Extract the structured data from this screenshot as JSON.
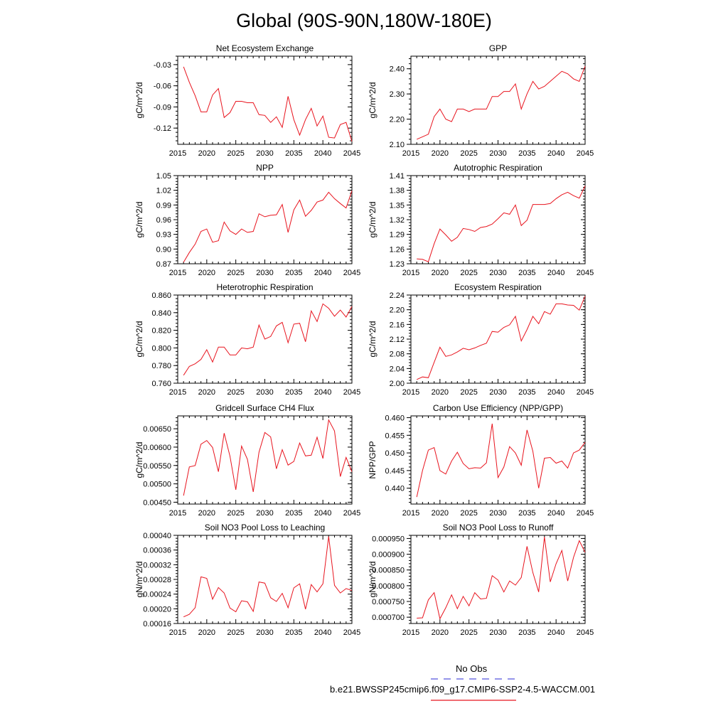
{
  "title": "Global (90S-90N,180W-180E)",
  "legend": {
    "obs_label": "No Obs",
    "obs_color": "#5555dd",
    "case_label": "b.e21.BWSSP245cmip6.f09_g17.CMIP6-SSP2-4.5-WACCM.001",
    "case_color": "#e8141e"
  },
  "line_color": "#e8141e",
  "chart_data": [
    {
      "type": "line",
      "title": "Net Ecosystem Exchange",
      "ylabel": "gC/m^2/d",
      "xlim": [
        2015,
        2045
      ],
      "xticks": [
        2015,
        2020,
        2025,
        2030,
        2035,
        2040,
        2045
      ],
      "ylim": [
        -0.143,
        -0.018
      ],
      "yticks": [
        -0.12,
        -0.09,
        -0.06,
        -0.03
      ],
      "ytick_labels": [
        "-0.12",
        "-0.09",
        "-0.06",
        "-0.03"
      ],
      "x": [
        2016,
        2017,
        2018,
        2019,
        2020,
        2021,
        2022,
        2023,
        2024,
        2025,
        2026,
        2027,
        2028,
        2029,
        2030,
        2031,
        2032,
        2033,
        2034,
        2035,
        2036,
        2037,
        2038,
        2039,
        2040,
        2041,
        2042,
        2043,
        2044,
        2045
      ],
      "values": [
        -0.033,
        -0.055,
        -0.074,
        -0.097,
        -0.097,
        -0.073,
        -0.064,
        -0.105,
        -0.098,
        -0.082,
        -0.082,
        -0.084,
        -0.084,
        -0.101,
        -0.102,
        -0.112,
        -0.104,
        -0.119,
        -0.075,
        -0.108,
        -0.13,
        -0.108,
        -0.092,
        -0.117,
        -0.103,
        -0.133,
        -0.134,
        -0.115,
        -0.112,
        -0.139
      ]
    },
    {
      "type": "line",
      "title": "GPP",
      "ylabel": "gC/m^2/d",
      "xlim": [
        2015,
        2045
      ],
      "xticks": [
        2015,
        2020,
        2025,
        2030,
        2035,
        2040,
        2045
      ],
      "ylim": [
        2.1,
        2.45
      ],
      "yticks": [
        2.1,
        2.2,
        2.3,
        2.4
      ],
      "ytick_labels": [
        "2.10",
        "2.20",
        "2.30",
        "2.40"
      ],
      "x": [
        2016,
        2017,
        2018,
        2019,
        2020,
        2021,
        2022,
        2023,
        2024,
        2025,
        2026,
        2027,
        2028,
        2029,
        2030,
        2031,
        2032,
        2033,
        2034,
        2035,
        2036,
        2037,
        2038,
        2039,
        2040,
        2041,
        2042,
        2043,
        2044,
        2045
      ],
      "values": [
        2.12,
        2.13,
        2.14,
        2.21,
        2.24,
        2.2,
        2.19,
        2.24,
        2.24,
        2.23,
        2.24,
        2.24,
        2.24,
        2.29,
        2.29,
        2.31,
        2.31,
        2.34,
        2.24,
        2.3,
        2.35,
        2.32,
        2.33,
        2.35,
        2.37,
        2.39,
        2.38,
        2.36,
        2.35,
        2.41
      ]
    },
    {
      "type": "line",
      "title": "NPP",
      "ylabel": "gC/m^2/d",
      "xlim": [
        2015,
        2045
      ],
      "xticks": [
        2015,
        2020,
        2025,
        2030,
        2035,
        2040,
        2045
      ],
      "ylim": [
        0.87,
        1.05
      ],
      "yticks": [
        0.87,
        0.9,
        0.93,
        0.96,
        0.99,
        1.02,
        1.05
      ],
      "ytick_labels": [
        "0.87",
        "0.90",
        "0.93",
        "0.96",
        "0.99",
        "1.02",
        "1.05"
      ],
      "x": [
        2016,
        2017,
        2018,
        2019,
        2020,
        2021,
        2022,
        2023,
        2024,
        2025,
        2026,
        2027,
        2028,
        2029,
        2030,
        2031,
        2032,
        2033,
        2034,
        2035,
        2036,
        2037,
        2038,
        2039,
        2040,
        2041,
        2042,
        2043,
        2044,
        2045
      ],
      "values": [
        0.873,
        0.893,
        0.91,
        0.936,
        0.941,
        0.914,
        0.917,
        0.955,
        0.937,
        0.93,
        0.941,
        0.934,
        0.936,
        0.972,
        0.966,
        0.969,
        0.97,
        0.991,
        0.934,
        0.98,
        1.0,
        0.967,
        0.979,
        0.996,
        1.0,
        1.016,
        1.003,
        0.993,
        0.984,
        1.019
      ]
    },
    {
      "type": "line",
      "title": "Autotrophic Respiration",
      "ylabel": "gC/m^2/d",
      "xlim": [
        2015,
        2045
      ],
      "xticks": [
        2015,
        2020,
        2025,
        2030,
        2035,
        2040,
        2045
      ],
      "ylim": [
        1.23,
        1.41
      ],
      "yticks": [
        1.23,
        1.26,
        1.29,
        1.32,
        1.35,
        1.38,
        1.41
      ],
      "ytick_labels": [
        "1.23",
        "1.26",
        "1.29",
        "1.32",
        "1.35",
        "1.38",
        "1.41"
      ],
      "x": [
        2016,
        2017,
        2018,
        2019,
        2020,
        2021,
        2022,
        2023,
        2024,
        2025,
        2026,
        2027,
        2028,
        2029,
        2030,
        2031,
        2032,
        2033,
        2034,
        2035,
        2036,
        2037,
        2038,
        2039,
        2040,
        2041,
        2042,
        2043,
        2044,
        2045
      ],
      "values": [
        1.24,
        1.239,
        1.234,
        1.271,
        1.301,
        1.289,
        1.276,
        1.284,
        1.302,
        1.3,
        1.296,
        1.304,
        1.306,
        1.311,
        1.322,
        1.334,
        1.331,
        1.35,
        1.308,
        1.319,
        1.351,
        1.351,
        1.351,
        1.353,
        1.363,
        1.371,
        1.376,
        1.369,
        1.364,
        1.389
      ]
    },
    {
      "type": "line",
      "title": "Heterotrophic Respiration",
      "ylabel": "gC/m^2/d",
      "xlim": [
        2015,
        2045
      ],
      "xticks": [
        2015,
        2020,
        2025,
        2030,
        2035,
        2040,
        2045
      ],
      "ylim": [
        0.76,
        0.86
      ],
      "yticks": [
        0.76,
        0.78,
        0.8,
        0.82,
        0.84,
        0.86
      ],
      "ytick_labels": [
        "0.760",
        "0.780",
        "0.800",
        "0.820",
        "0.840",
        "0.860"
      ],
      "x": [
        2016,
        2017,
        2018,
        2019,
        2020,
        2021,
        2022,
        2023,
        2024,
        2025,
        2026,
        2027,
        2028,
        2029,
        2030,
        2031,
        2032,
        2033,
        2034,
        2035,
        2036,
        2037,
        2038,
        2039,
        2040,
        2041,
        2042,
        2043,
        2044,
        2045
      ],
      "values": [
        0.769,
        0.779,
        0.782,
        0.787,
        0.798,
        0.784,
        0.801,
        0.801,
        0.792,
        0.792,
        0.8,
        0.799,
        0.801,
        0.826,
        0.81,
        0.813,
        0.825,
        0.829,
        0.806,
        0.827,
        0.828,
        0.807,
        0.842,
        0.83,
        0.85,
        0.845,
        0.836,
        0.843,
        0.835,
        0.847
      ]
    },
    {
      "type": "line",
      "title": "Ecosystem Respiration",
      "ylabel": "gC/m^2/d",
      "xlim": [
        2015,
        2045
      ],
      "xticks": [
        2015,
        2020,
        2025,
        2030,
        2035,
        2040,
        2045
      ],
      "ylim": [
        2.0,
        2.24
      ],
      "yticks": [
        2.0,
        2.04,
        2.08,
        2.12,
        2.16,
        2.2,
        2.24
      ],
      "ytick_labels": [
        "2.00",
        "2.04",
        "2.08",
        "2.12",
        "2.16",
        "2.20",
        "2.24"
      ],
      "x": [
        2016,
        2017,
        2018,
        2019,
        2020,
        2021,
        2022,
        2023,
        2024,
        2025,
        2026,
        2027,
        2028,
        2029,
        2030,
        2031,
        2032,
        2033,
        2034,
        2035,
        2036,
        2037,
        2038,
        2039,
        2040,
        2041,
        2042,
        2043,
        2044,
        2045
      ],
      "values": [
        2.01,
        2.017,
        2.015,
        2.057,
        2.098,
        2.073,
        2.077,
        2.085,
        2.095,
        2.091,
        2.096,
        2.103,
        2.109,
        2.141,
        2.139,
        2.152,
        2.159,
        2.182,
        2.115,
        2.146,
        2.182,
        2.162,
        2.195,
        2.188,
        2.216,
        2.216,
        2.213,
        2.212,
        2.199,
        2.237
      ]
    },
    {
      "type": "line",
      "title": "Gridcell Surface CH4 Flux",
      "ylabel": "gC/m^2/d",
      "xlim": [
        2015,
        2045
      ],
      "xticks": [
        2015,
        2020,
        2025,
        2030,
        2035,
        2040,
        2045
      ],
      "ylim": [
        0.00445,
        0.00685
      ],
      "yticks": [
        0.0045,
        0.005,
        0.0055,
        0.006,
        0.0065
      ],
      "ytick_labels": [
        "0.00450",
        "0.00500",
        "0.00550",
        "0.00600",
        "0.00650"
      ],
      "x": [
        2016,
        2017,
        2018,
        2019,
        2020,
        2021,
        2022,
        2023,
        2024,
        2025,
        2026,
        2027,
        2028,
        2029,
        2030,
        2031,
        2032,
        2033,
        2034,
        2035,
        2036,
        2037,
        2038,
        2039,
        2040,
        2041,
        2042,
        2043,
        2044,
        2045
      ],
      "values": [
        0.00468,
        0.00546,
        0.0055,
        0.00608,
        0.00618,
        0.00599,
        0.00533,
        0.00638,
        0.00575,
        0.00484,
        0.00603,
        0.00567,
        0.00478,
        0.00586,
        0.0064,
        0.00628,
        0.00541,
        0.00593,
        0.00551,
        0.00561,
        0.00611,
        0.00576,
        0.00578,
        0.00627,
        0.00569,
        0.00674,
        0.00644,
        0.0052,
        0.00572,
        0.00533
      ]
    },
    {
      "type": "line",
      "title": "Carbon Use Efficiency (NPP/GPP)",
      "ylabel": "NPP/GPP",
      "xlim": [
        2015,
        2045
      ],
      "xticks": [
        2015,
        2020,
        2025,
        2030,
        2035,
        2040,
        2045
      ],
      "ylim": [
        0.4355,
        0.4605
      ],
      "yticks": [
        0.44,
        0.445,
        0.45,
        0.455,
        0.46
      ],
      "ytick_labels": [
        "0.440",
        "0.445",
        "0.450",
        "0.455",
        "0.460"
      ],
      "x": [
        2016,
        2017,
        2018,
        2019,
        2020,
        2021,
        2022,
        2023,
        2024,
        2025,
        2026,
        2027,
        2028,
        2029,
        2030,
        2031,
        2032,
        2033,
        2034,
        2035,
        2036,
        2037,
        2038,
        2039,
        2040,
        2041,
        2042,
        2043,
        2044,
        2045
      ],
      "values": [
        0.4375,
        0.445,
        0.4508,
        0.4515,
        0.445,
        0.444,
        0.4477,
        0.4502,
        0.447,
        0.4455,
        0.4458,
        0.4457,
        0.4472,
        0.4583,
        0.443,
        0.446,
        0.4518,
        0.45,
        0.4465,
        0.4565,
        0.4505,
        0.44,
        0.4485,
        0.4487,
        0.4471,
        0.4477,
        0.4457,
        0.45,
        0.4508,
        0.453
      ]
    },
    {
      "type": "line",
      "title": "Soil NO3 Pool Loss to Leaching",
      "ylabel": "gN/m^2/d",
      "xlim": [
        2015,
        2045
      ],
      "xticks": [
        2015,
        2020,
        2025,
        2030,
        2035,
        2040,
        2045
      ],
      "ylim": [
        0.00016,
        0.0004
      ],
      "yticks": [
        0.00016,
        0.0002,
        0.00024,
        0.00028,
        0.00032,
        0.00036,
        0.0004
      ],
      "ytick_labels": [
        "0.00016",
        "0.00020",
        "0.00024",
        "0.00028",
        "0.00032",
        "0.00036",
        "0.00040"
      ],
      "x": [
        2016,
        2017,
        2018,
        2019,
        2020,
        2021,
        2022,
        2023,
        2024,
        2025,
        2026,
        2027,
        2028,
        2029,
        2030,
        2031,
        2032,
        2033,
        2034,
        2035,
        2036,
        2037,
        2038,
        2039,
        2040,
        2041,
        2042,
        2043,
        2044,
        2045
      ],
      "values": [
        0.000178,
        0.000185,
        0.000203,
        0.000287,
        0.000283,
        0.000226,
        0.000258,
        0.000243,
        0.000202,
        0.000192,
        0.000222,
        0.000219,
        0.000193,
        0.000273,
        0.00027,
        0.00023,
        0.00022,
        0.000242,
        0.000203,
        0.000257,
        0.000268,
        0.000199,
        0.000266,
        0.000246,
        0.000268,
        0.000397,
        0.000264,
        0.000243,
        0.000255,
        0.00025
      ]
    },
    {
      "type": "line",
      "title": "Soil NO3 Pool Loss to Runoff",
      "ylabel": "gN/m^2/d",
      "xlim": [
        2015,
        2045
      ],
      "xticks": [
        2015,
        2020,
        2025,
        2030,
        2035,
        2040,
        2045
      ],
      "ylim": [
        0.00068,
        0.00096
      ],
      "yticks": [
        0.0007,
        0.00075,
        0.0008,
        0.00085,
        0.0009,
        0.00095
      ],
      "ytick_labels": [
        "0.000700",
        "0.000750",
        "0.000800",
        "0.000850",
        "0.000900",
        "0.000950"
      ],
      "x": [
        2016,
        2017,
        2018,
        2019,
        2020,
        2021,
        2022,
        2023,
        2024,
        2025,
        2026,
        2027,
        2028,
        2029,
        2030,
        2031,
        2032,
        2033,
        2034,
        2035,
        2036,
        2037,
        2038,
        2039,
        2040,
        2041,
        2042,
        2043,
        2044,
        2045
      ],
      "values": [
        0.000697,
        0.000698,
        0.000755,
        0.000778,
        0.000695,
        0.00073,
        0.000771,
        0.000727,
        0.000766,
        0.000736,
        0.000778,
        0.000758,
        0.00076,
        0.000832,
        0.000818,
        0.00078,
        0.000815,
        0.000802,
        0.000826,
        0.000925,
        0.000842,
        0.00078,
        0.000955,
        0.000812,
        0.00087,
        0.000912,
        0.000815,
        0.00089,
        0.000943,
        0.000906
      ]
    }
  ]
}
